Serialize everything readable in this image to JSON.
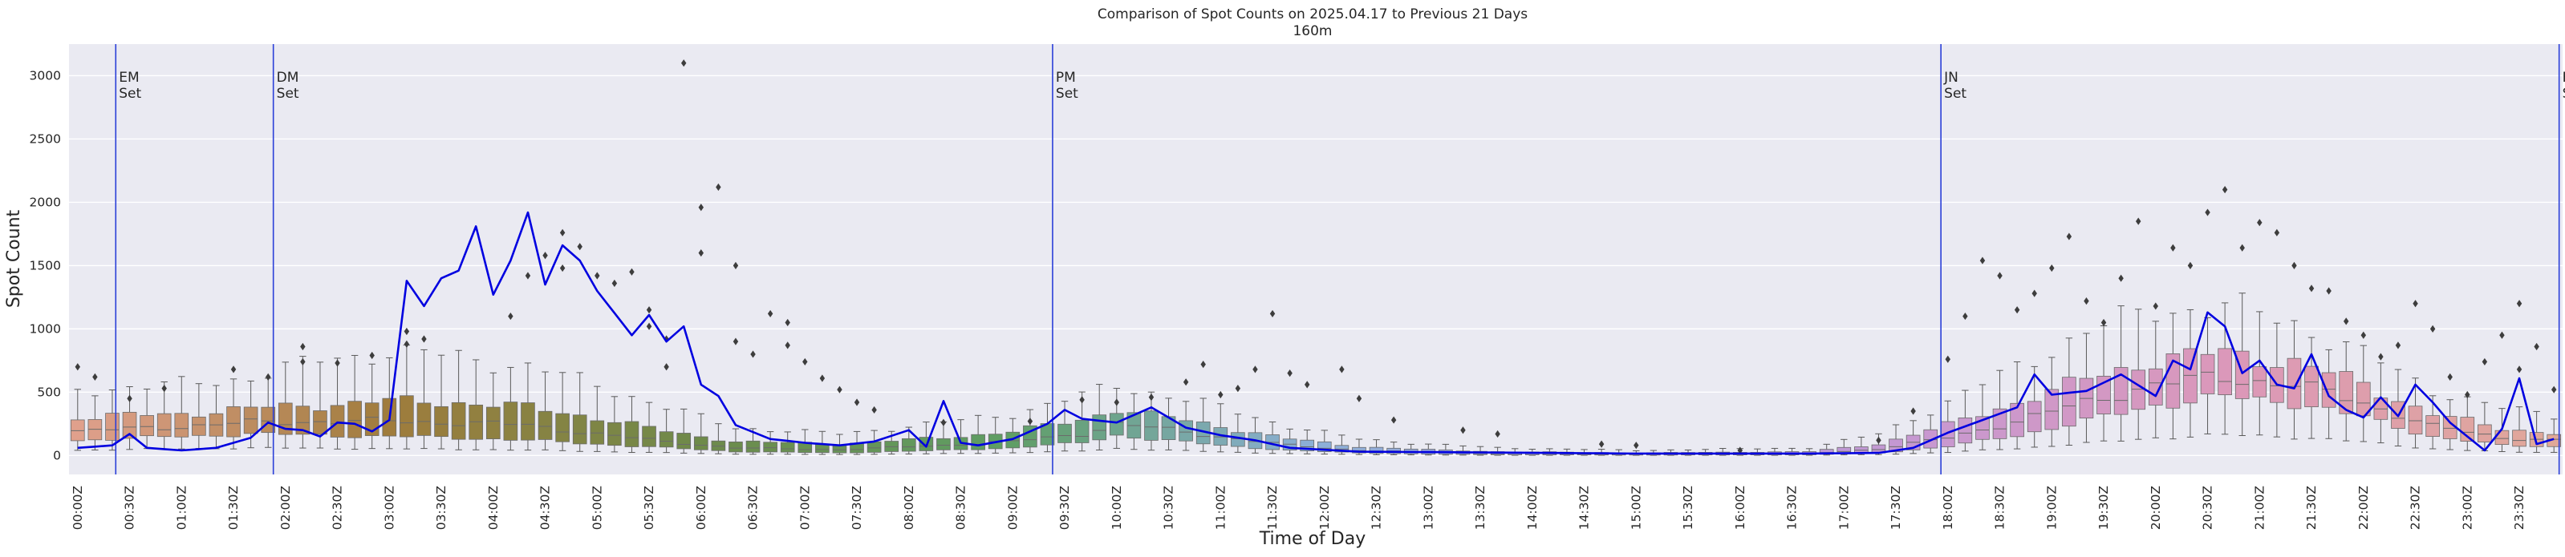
{
  "chart_data": {
    "type": "box+line",
    "title": "Comparison of Spot Counts on 2025.04.17 to Previous 21 Days",
    "subtitle": "160m",
    "xlabel": "Time of Day",
    "ylabel": "Spot Count",
    "ylim": [
      -150,
      3250
    ],
    "yticks": [
      0,
      500,
      1000,
      1500,
      2000,
      2500,
      3000
    ],
    "ytick_labels": [
      "0",
      "500",
      "1000",
      "1500",
      "2000",
      "2500",
      "3000"
    ],
    "bin_minutes": 10,
    "n_bins": 144,
    "xtick_labels": [
      "00:00Z",
      "00:30Z",
      "01:00Z",
      "01:30Z",
      "02:00Z",
      "02:30Z",
      "03:00Z",
      "03:30Z",
      "04:00Z",
      "04:30Z",
      "05:00Z",
      "05:30Z",
      "06:00Z",
      "06:30Z",
      "07:00Z",
      "07:30Z",
      "08:00Z",
      "08:30Z",
      "09:00Z",
      "09:30Z",
      "10:00Z",
      "10:30Z",
      "11:00Z",
      "11:30Z",
      "12:00Z",
      "12:30Z",
      "13:00Z",
      "13:30Z",
      "14:00Z",
      "14:30Z",
      "15:00Z",
      "15:30Z",
      "16:00Z",
      "16:30Z",
      "17:00Z",
      "17:30Z",
      "18:00Z",
      "18:30Z",
      "19:00Z",
      "19:30Z",
      "20:00Z",
      "20:30Z",
      "21:00Z",
      "21:30Z",
      "22:00Z",
      "22:30Z",
      "23:00Z",
      "23:30Z"
    ],
    "events": [
      {
        "line1": "EM",
        "line2": "Set",
        "time": "00:27Z",
        "bin": 2.7
      },
      {
        "line1": "DM",
        "line2": "Set",
        "time": "01:58Z",
        "bin": 11.8
      },
      {
        "line1": "PM",
        "line2": "Set",
        "time": "09:28Z",
        "bin": 56.8
      },
      {
        "line1": "JN",
        "line2": "Set",
        "time": "18:01Z",
        "bin": 108.1
      },
      {
        "line1": "FN",
        "line2": "Set",
        "time": "23:58Z",
        "bin": 143.8
      }
    ],
    "box_median_keypoints": [
      [
        0,
        190
      ],
      [
        6,
        230
      ],
      [
        10,
        260
      ],
      [
        14,
        270
      ],
      [
        18,
        270
      ],
      [
        22,
        260
      ],
      [
        26,
        240
      ],
      [
        30,
        170
      ],
      [
        34,
        110
      ],
      [
        38,
        60
      ],
      [
        44,
        45
      ],
      [
        50,
        80
      ],
      [
        54,
        110
      ],
      [
        58,
        170
      ],
      [
        60,
        250
      ],
      [
        62,
        220
      ],
      [
        66,
        150
      ],
      [
        70,
        80
      ],
      [
        74,
        40
      ],
      [
        78,
        25
      ],
      [
        82,
        15
      ],
      [
        90,
        10
      ],
      [
        100,
        15
      ],
      [
        104,
        50
      ],
      [
        108,
        140
      ],
      [
        112,
        270
      ],
      [
        116,
        420
      ],
      [
        120,
        560
      ],
      [
        124,
        620
      ],
      [
        128,
        560
      ],
      [
        132,
        420
      ],
      [
        136,
        230
      ],
      [
        140,
        140
      ],
      [
        143,
        120
      ]
    ],
    "box_q3_keypoints": [
      [
        0,
        300
      ],
      [
        6,
        330
      ],
      [
        10,
        370
      ],
      [
        14,
        400
      ],
      [
        18,
        430
      ],
      [
        22,
        420
      ],
      [
        26,
        380
      ],
      [
        30,
        300
      ],
      [
        34,
        190
      ],
      [
        38,
        110
      ],
      [
        44,
        90
      ],
      [
        50,
        140
      ],
      [
        54,
        190
      ],
      [
        58,
        280
      ],
      [
        60,
        370
      ],
      [
        62,
        320
      ],
      [
        66,
        230
      ],
      [
        70,
        130
      ],
      [
        74,
        70
      ],
      [
        78,
        45
      ],
      [
        82,
        30
      ],
      [
        90,
        20
      ],
      [
        100,
        30
      ],
      [
        104,
        90
      ],
      [
        108,
        240
      ],
      [
        112,
        420
      ],
      [
        116,
        600
      ],
      [
        120,
        760
      ],
      [
        124,
        810
      ],
      [
        128,
        740
      ],
      [
        132,
        560
      ],
      [
        136,
        330
      ],
      [
        140,
        210
      ],
      [
        143,
        180
      ]
    ],
    "box_q1_keypoints": [
      [
        0,
        120
      ],
      [
        6,
        150
      ],
      [
        10,
        170
      ],
      [
        14,
        160
      ],
      [
        18,
        150
      ],
      [
        22,
        140
      ],
      [
        26,
        120
      ],
      [
        30,
        90
      ],
      [
        34,
        60
      ],
      [
        38,
        30
      ],
      [
        44,
        20
      ],
      [
        50,
        40
      ],
      [
        54,
        60
      ],
      [
        58,
        100
      ],
      [
        60,
        160
      ],
      [
        62,
        130
      ],
      [
        66,
        80
      ],
      [
        70,
        40
      ],
      [
        74,
        20
      ],
      [
        78,
        10
      ],
      [
        82,
        5
      ],
      [
        90,
        3
      ],
      [
        100,
        5
      ],
      [
        104,
        20
      ],
      [
        108,
        70
      ],
      [
        112,
        160
      ],
      [
        116,
        270
      ],
      [
        120,
        400
      ],
      [
        124,
        460
      ],
      [
        128,
        420
      ],
      [
        132,
        300
      ],
      [
        136,
        150
      ],
      [
        140,
        80
      ],
      [
        143,
        70
      ]
    ],
    "box_whisker_hi_keypoints": [
      [
        0,
        520
      ],
      [
        6,
        560
      ],
      [
        10,
        620
      ],
      [
        14,
        750
      ],
      [
        18,
        820
      ],
      [
        22,
        780
      ],
      [
        26,
        700
      ],
      [
        30,
        560
      ],
      [
        34,
        380
      ],
      [
        38,
        220
      ],
      [
        44,
        170
      ],
      [
        50,
        260
      ],
      [
        54,
        330
      ],
      [
        58,
        470
      ],
      [
        60,
        560
      ],
      [
        62,
        500
      ],
      [
        66,
        380
      ],
      [
        70,
        230
      ],
      [
        74,
        130
      ],
      [
        78,
        90
      ],
      [
        82,
        60
      ],
      [
        90,
        40
      ],
      [
        100,
        60
      ],
      [
        104,
        170
      ],
      [
        108,
        420
      ],
      [
        112,
        700
      ],
      [
        116,
        980
      ],
      [
        120,
        1150
      ],
      [
        124,
        1180
      ],
      [
        128,
        1050
      ],
      [
        132,
        800
      ],
      [
        136,
        520
      ],
      [
        140,
        370
      ],
      [
        143,
        320
      ]
    ],
    "today_keypoints": [
      [
        0,
        60
      ],
      [
        2,
        80
      ],
      [
        3,
        170
      ],
      [
        4,
        60
      ],
      [
        6,
        40
      ],
      [
        8,
        60
      ],
      [
        10,
        140
      ],
      [
        11,
        260
      ],
      [
        12,
        210
      ],
      [
        13,
        200
      ],
      [
        14,
        150
      ],
      [
        15,
        260
      ],
      [
        16,
        250
      ],
      [
        17,
        190
      ],
      [
        18,
        280
      ],
      [
        18.5,
        650
      ],
      [
        19,
        1380
      ],
      [
        20,
        1180
      ],
      [
        21,
        1400
      ],
      [
        22,
        1460
      ],
      [
        23,
        1810
      ],
      [
        24,
        1270
      ],
      [
        25,
        1540
      ],
      [
        26,
        1920
      ],
      [
        27,
        1350
      ],
      [
        28,
        1660
      ],
      [
        29,
        1540
      ],
      [
        30,
        1300
      ],
      [
        32,
        950
      ],
      [
        33,
        1110
      ],
      [
        34,
        900
      ],
      [
        35,
        1020
      ],
      [
        36,
        560
      ],
      [
        37,
        470
      ],
      [
        38,
        240
      ],
      [
        40,
        130
      ],
      [
        42,
        100
      ],
      [
        44,
        80
      ],
      [
        46,
        110
      ],
      [
        48,
        200
      ],
      [
        49,
        70
      ],
      [
        50,
        430
      ],
      [
        51,
        100
      ],
      [
        52,
        80
      ],
      [
        54,
        130
      ],
      [
        56,
        250
      ],
      [
        57,
        360
      ],
      [
        58,
        290
      ],
      [
        60,
        260
      ],
      [
        62,
        380
      ],
      [
        64,
        220
      ],
      [
        66,
        160
      ],
      [
        68,
        120
      ],
      [
        70,
        60
      ],
      [
        74,
        30
      ],
      [
        80,
        25
      ],
      [
        90,
        15
      ],
      [
        100,
        15
      ],
      [
        104,
        20
      ],
      [
        106,
        60
      ],
      [
        108,
        180
      ],
      [
        110,
        280
      ],
      [
        112,
        380
      ],
      [
        113,
        640
      ],
      [
        114,
        480
      ],
      [
        116,
        510
      ],
      [
        118,
        640
      ],
      [
        120,
        470
      ],
      [
        121,
        750
      ],
      [
        122,
        680
      ],
      [
        123,
        1130
      ],
      [
        124,
        1020
      ],
      [
        125,
        650
      ],
      [
        126,
        750
      ],
      [
        127,
        560
      ],
      [
        128,
        530
      ],
      [
        129,
        800
      ],
      [
        130,
        470
      ],
      [
        131,
        360
      ],
      [
        132,
        300
      ],
      [
        133,
        460
      ],
      [
        134,
        310
      ],
      [
        135,
        560
      ],
      [
        136,
        420
      ],
      [
        137,
        260
      ],
      [
        138,
        150
      ],
      [
        139,
        40
      ],
      [
        140,
        210
      ],
      [
        141,
        610
      ],
      [
        142,
        90
      ],
      [
        142.5,
        340
      ],
      [
        143,
        130
      ]
    ],
    "outliers": [
      [
        0,
        700
      ],
      [
        1,
        620
      ],
      [
        3,
        450
      ],
      [
        5,
        530
      ],
      [
        9,
        680
      ],
      [
        11,
        620
      ],
      [
        13,
        740
      ],
      [
        13,
        860
      ],
      [
        15,
        730
      ],
      [
        17,
        790
      ],
      [
        19,
        880
      ],
      [
        19,
        980
      ],
      [
        20,
        920
      ],
      [
        25,
        1100
      ],
      [
        26,
        1420
      ],
      [
        27,
        1580
      ],
      [
        28,
        1760
      ],
      [
        28,
        1480
      ],
      [
        29,
        1650
      ],
      [
        30,
        1420
      ],
      [
        31,
        1360
      ],
      [
        32,
        1450
      ],
      [
        33,
        1150
      ],
      [
        33,
        1020
      ],
      [
        34,
        920
      ],
      [
        34,
        700
      ],
      [
        35,
        3100
      ],
      [
        36,
        1600
      ],
      [
        36,
        1960
      ],
      [
        37,
        2120
      ],
      [
        38,
        1500
      ],
      [
        38,
        900
      ],
      [
        39,
        800
      ],
      [
        40,
        1120
      ],
      [
        41,
        1050
      ],
      [
        41,
        870
      ],
      [
        42,
        740
      ],
      [
        43,
        610
      ],
      [
        44,
        520
      ],
      [
        45,
        420
      ],
      [
        46,
        360
      ],
      [
        50,
        260
      ],
      [
        55,
        270
      ],
      [
        58,
        440
      ],
      [
        60,
        420
      ],
      [
        62,
        460
      ],
      [
        64,
        580
      ],
      [
        65,
        720
      ],
      [
        66,
        480
      ],
      [
        67,
        530
      ],
      [
        68,
        680
      ],
      [
        69,
        1120
      ],
      [
        70,
        650
      ],
      [
        71,
        560
      ],
      [
        73,
        680
      ],
      [
        74,
        450
      ],
      [
        76,
        280
      ],
      [
        80,
        200
      ],
      [
        82,
        170
      ],
      [
        88,
        90
      ],
      [
        90,
        80
      ],
      [
        96,
        40
      ],
      [
        104,
        120
      ],
      [
        106,
        350
      ],
      [
        108,
        760
      ],
      [
        109,
        1100
      ],
      [
        110,
        1540
      ],
      [
        111,
        1420
      ],
      [
        112,
        1150
      ],
      [
        113,
        1280
      ],
      [
        114,
        1480
      ],
      [
        115,
        1730
      ],
      [
        116,
        1220
      ],
      [
        117,
        1050
      ],
      [
        118,
        1400
      ],
      [
        119,
        1850
      ],
      [
        120,
        1180
      ],
      [
        121,
        1640
      ],
      [
        122,
        1500
      ],
      [
        123,
        1920
      ],
      [
        124,
        2100
      ],
      [
        125,
        1640
      ],
      [
        126,
        1840
      ],
      [
        127,
        1760
      ],
      [
        128,
        1500
      ],
      [
        129,
        1320
      ],
      [
        130,
        1300
      ],
      [
        131,
        1060
      ],
      [
        132,
        950
      ],
      [
        133,
        780
      ],
      [
        134,
        870
      ],
      [
        135,
        1200
      ],
      [
        136,
        1000
      ],
      [
        137,
        620
      ],
      [
        138,
        480
      ],
      [
        139,
        740
      ],
      [
        140,
        950
      ],
      [
        141,
        1200
      ],
      [
        141,
        680
      ],
      [
        142,
        860
      ],
      [
        143,
        520
      ]
    ],
    "colors": {
      "background": "#eaeaf2",
      "grid": "#ffffff",
      "today_line": "#0000e0",
      "event_line": "#2a3fd8",
      "whisker": "#5a5a5a",
      "box_edge": "#6b6b6b",
      "outlier": "#3d3d3d",
      "box_gradient": [
        "#e0a08c",
        "#a07c3c",
        "#6e8a4a",
        "#5e9e64",
        "#8cb0d8",
        "#a898dc",
        "#c898d0",
        "#dc98b8",
        "#e0a898"
      ]
    },
    "legend": "none",
    "grid": true
  }
}
